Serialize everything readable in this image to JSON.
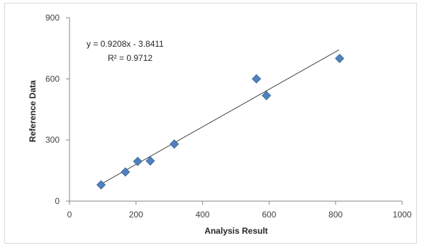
{
  "chart_data": {
    "type": "scatter",
    "title": "",
    "xlabel": "Analysis Result",
    "ylabel": "Reference Data",
    "xlim": [
      0,
      1000
    ],
    "ylim": [
      0,
      900
    ],
    "xticks": [
      0,
      200,
      400,
      600,
      800,
      1000
    ],
    "yticks": [
      0,
      300,
      600,
      900
    ],
    "xtick_labels": [
      "0",
      "200",
      "400",
      "600",
      "800",
      "1000"
    ],
    "ytick_labels": [
      "0",
      "300",
      "600",
      "900"
    ],
    "grid": false,
    "legend": "none",
    "points": [
      {
        "x": 95,
        "y": 80
      },
      {
        "x": 168,
        "y": 143
      },
      {
        "x": 205,
        "y": 195
      },
      {
        "x": 243,
        "y": 197
      },
      {
        "x": 315,
        "y": 280
      },
      {
        "x": 562,
        "y": 600
      },
      {
        "x": 592,
        "y": 518
      },
      {
        "x": 812,
        "y": 700
      }
    ],
    "trendline": {
      "slope": 0.9208,
      "intercept": -3.8411,
      "x_range": [
        90,
        810
      ],
      "equation_label": "y = 0.9208x - 3.8411",
      "r2_label": "R² = 0.9712"
    },
    "marker_color": "#4f81bd",
    "line_color": "#404040"
  }
}
